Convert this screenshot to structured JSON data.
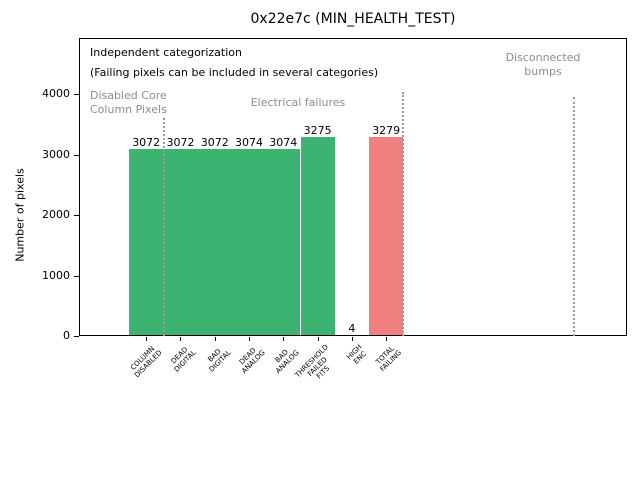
{
  "figure": {
    "title": "0x22e7c (MIN_HEALTH_TEST)",
    "ylabel": "Number of pixels",
    "annotation_title": "Independent categorization",
    "annotation_subtitle": "(Failing pixels can be included in several categories)",
    "section_labels": {
      "disabled_core": "Disabled Core\nColumn Pixels",
      "electrical": "Electrical failures",
      "disconnected": "Disconnected\nbumps"
    },
    "colors": {
      "bar_green": "#3cb371",
      "bar_red": "#f08080",
      "gray_text": "#8c8c8c",
      "separator_gray": "#999999",
      "axis_black": "#000000"
    }
  },
  "chart_data": {
    "type": "bar",
    "title": "0x22e7c (MIN_HEALTH_TEST)",
    "xlabel": "",
    "ylabel": "Number of pixels",
    "categories": [
      "COLUMN DISABLED",
      "DEAD DIGITAL",
      "BAD DIGITAL",
      "DEAD ANALOG",
      "BAD ANALOG",
      "THRESHOLD FAILED FITS",
      "HIGH ENC",
      "TOTAL FAILING"
    ],
    "category_display_lines": [
      [
        "COLUMN",
        "DISABLED"
      ],
      [
        "DEAD",
        "DIGITAL"
      ],
      [
        "BAD",
        "DIGITAL"
      ],
      [
        "DEAD",
        "ANALOG"
      ],
      [
        "BAD",
        "ANALOG"
      ],
      [
        "THRESHOLD",
        "FAILED",
        "FITS"
      ],
      [
        "HIGH",
        "ENC"
      ],
      [
        "TOTAL",
        "FAILING"
      ]
    ],
    "values": [
      3072,
      3072,
      3072,
      3074,
      3074,
      3275,
      4,
      3279
    ],
    "value_labels": [
      "3072",
      "3072",
      "3072",
      "3074",
      "3074",
      "3275",
      "4",
      "3279"
    ],
    "bar_color_keys": [
      "bar_green",
      "bar_green",
      "bar_green",
      "bar_green",
      "bar_green",
      "bar_green",
      "bar_green",
      "bar_red"
    ],
    "yticks": [
      0,
      1000,
      2000,
      3000,
      4000
    ],
    "ylim": [
      0,
      4926
    ],
    "grid": false,
    "legend": null,
    "bar_width_data_units": 1,
    "annotations": [
      {
        "text": "Independent categorization",
        "color": "black"
      },
      {
        "text": "(Failing pixels can be included in several categories)",
        "color": "black"
      },
      {
        "text": "Disabled Core Column Pixels",
        "color": "gray",
        "section_categories": [
          "COLUMN DISABLED"
        ]
      },
      {
        "text": "Electrical failures",
        "color": "gray",
        "section_categories": [
          "DEAD DIGITAL",
          "BAD DIGITAL",
          "DEAD ANALOG",
          "BAD ANALOG",
          "THRESHOLD FAILED FITS",
          "HIGH ENC",
          "TOTAL FAILING"
        ]
      },
      {
        "text": "Disconnected bumps",
        "color": "gray",
        "section_categories": []
      }
    ],
    "separators_dotted": 3
  }
}
